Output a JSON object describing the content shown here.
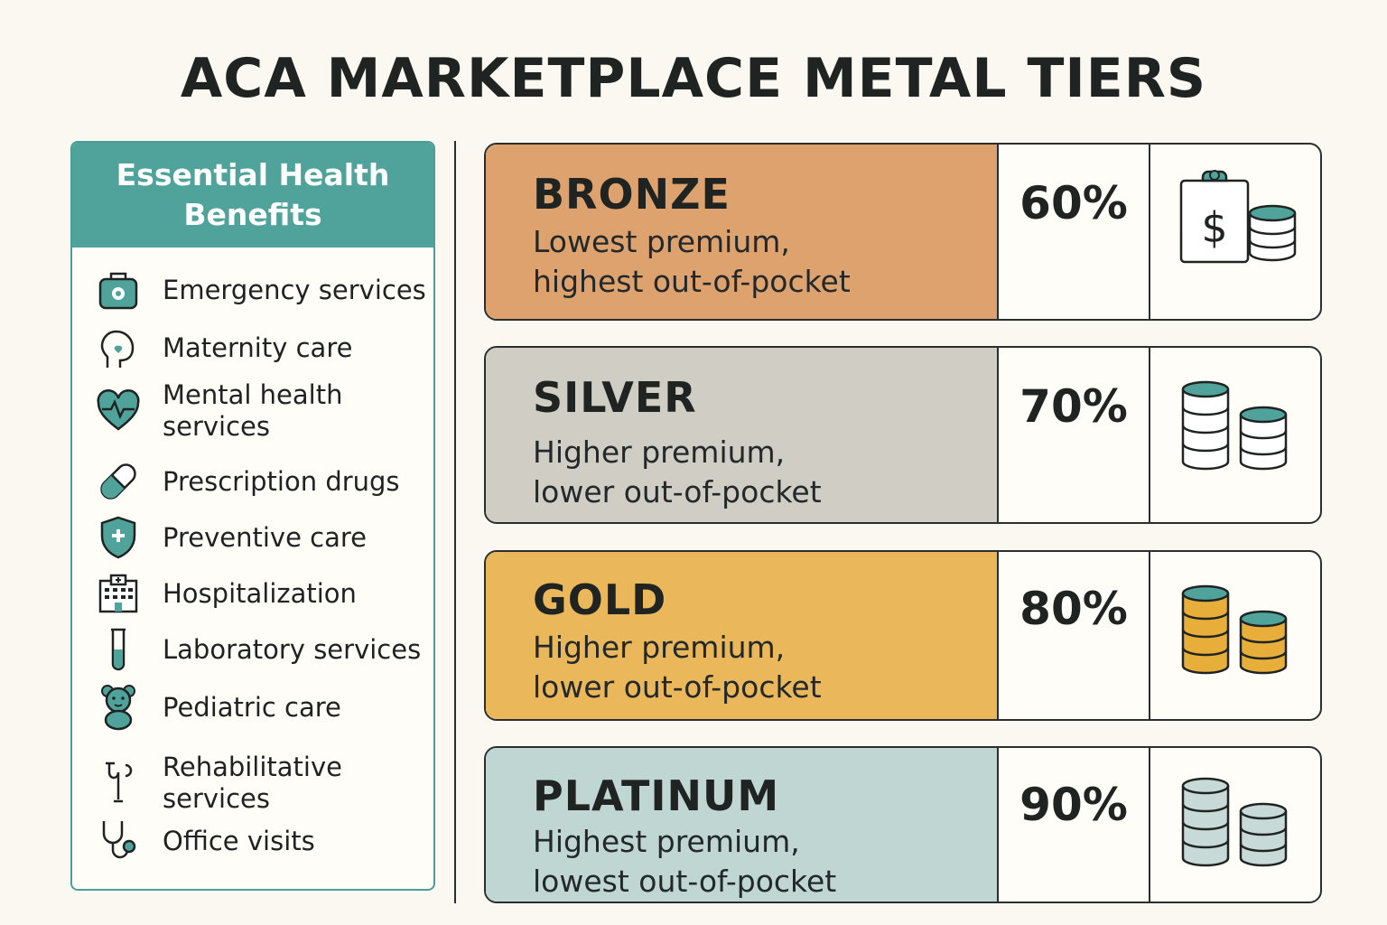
{
  "title": "ACA MARKETPLACE METAL TIERS",
  "benefits": {
    "header": "Essential Health Benefits",
    "items": [
      {
        "label": "Emergency services",
        "icon": "medical-bag-icon"
      },
      {
        "label": "Maternity care",
        "icon": "maternity-icon"
      },
      {
        "label": "Mental health services",
        "icon": "heart-pulse-icon"
      },
      {
        "label": "Prescription drugs",
        "icon": "pill-icon"
      },
      {
        "label": "Preventive care",
        "icon": "shield-plus-icon"
      },
      {
        "label": "Hospitalization",
        "icon": "hospital-icon"
      },
      {
        "label": "Laboratory services",
        "icon": "test-tube-icon"
      },
      {
        "label": "Pediatric care",
        "icon": "teddy-bear-icon"
      },
      {
        "label": "Rehabilitative services",
        "icon": "crutch-icon"
      },
      {
        "label": "Office visits",
        "icon": "stethoscope-icon"
      }
    ]
  },
  "tiers": [
    {
      "name": "BRONZE",
      "desc1": "Lowest premium,",
      "desc2": "highest out-of-pocket",
      "pct": "60%",
      "color": "#dda26e",
      "icon": "clipboard-coins-icon"
    },
    {
      "name": "SILVER",
      "desc1": "Higher premium,",
      "desc2": "lower out-of-pocket",
      "pct": "70%",
      "color": "#cfcdc4",
      "icon": "white-coins-icon"
    },
    {
      "name": "GOLD",
      "desc1": "Higher premium,",
      "desc2": "lower out-of-pocket",
      "pct": "80%",
      "color": "#ebb75b",
      "icon": "gold-coins-icon"
    },
    {
      "name": "PLATINUM",
      "desc1": "Highest premium,",
      "desc2": "lowest out-of-pocket",
      "pct": "90%",
      "color": "#bfd6d2",
      "icon": "platinum-coins-icon"
    }
  ],
  "colors": {
    "teal": "#4fa39a",
    "dark": "#1f2422",
    "background": "#fbf8f1"
  }
}
